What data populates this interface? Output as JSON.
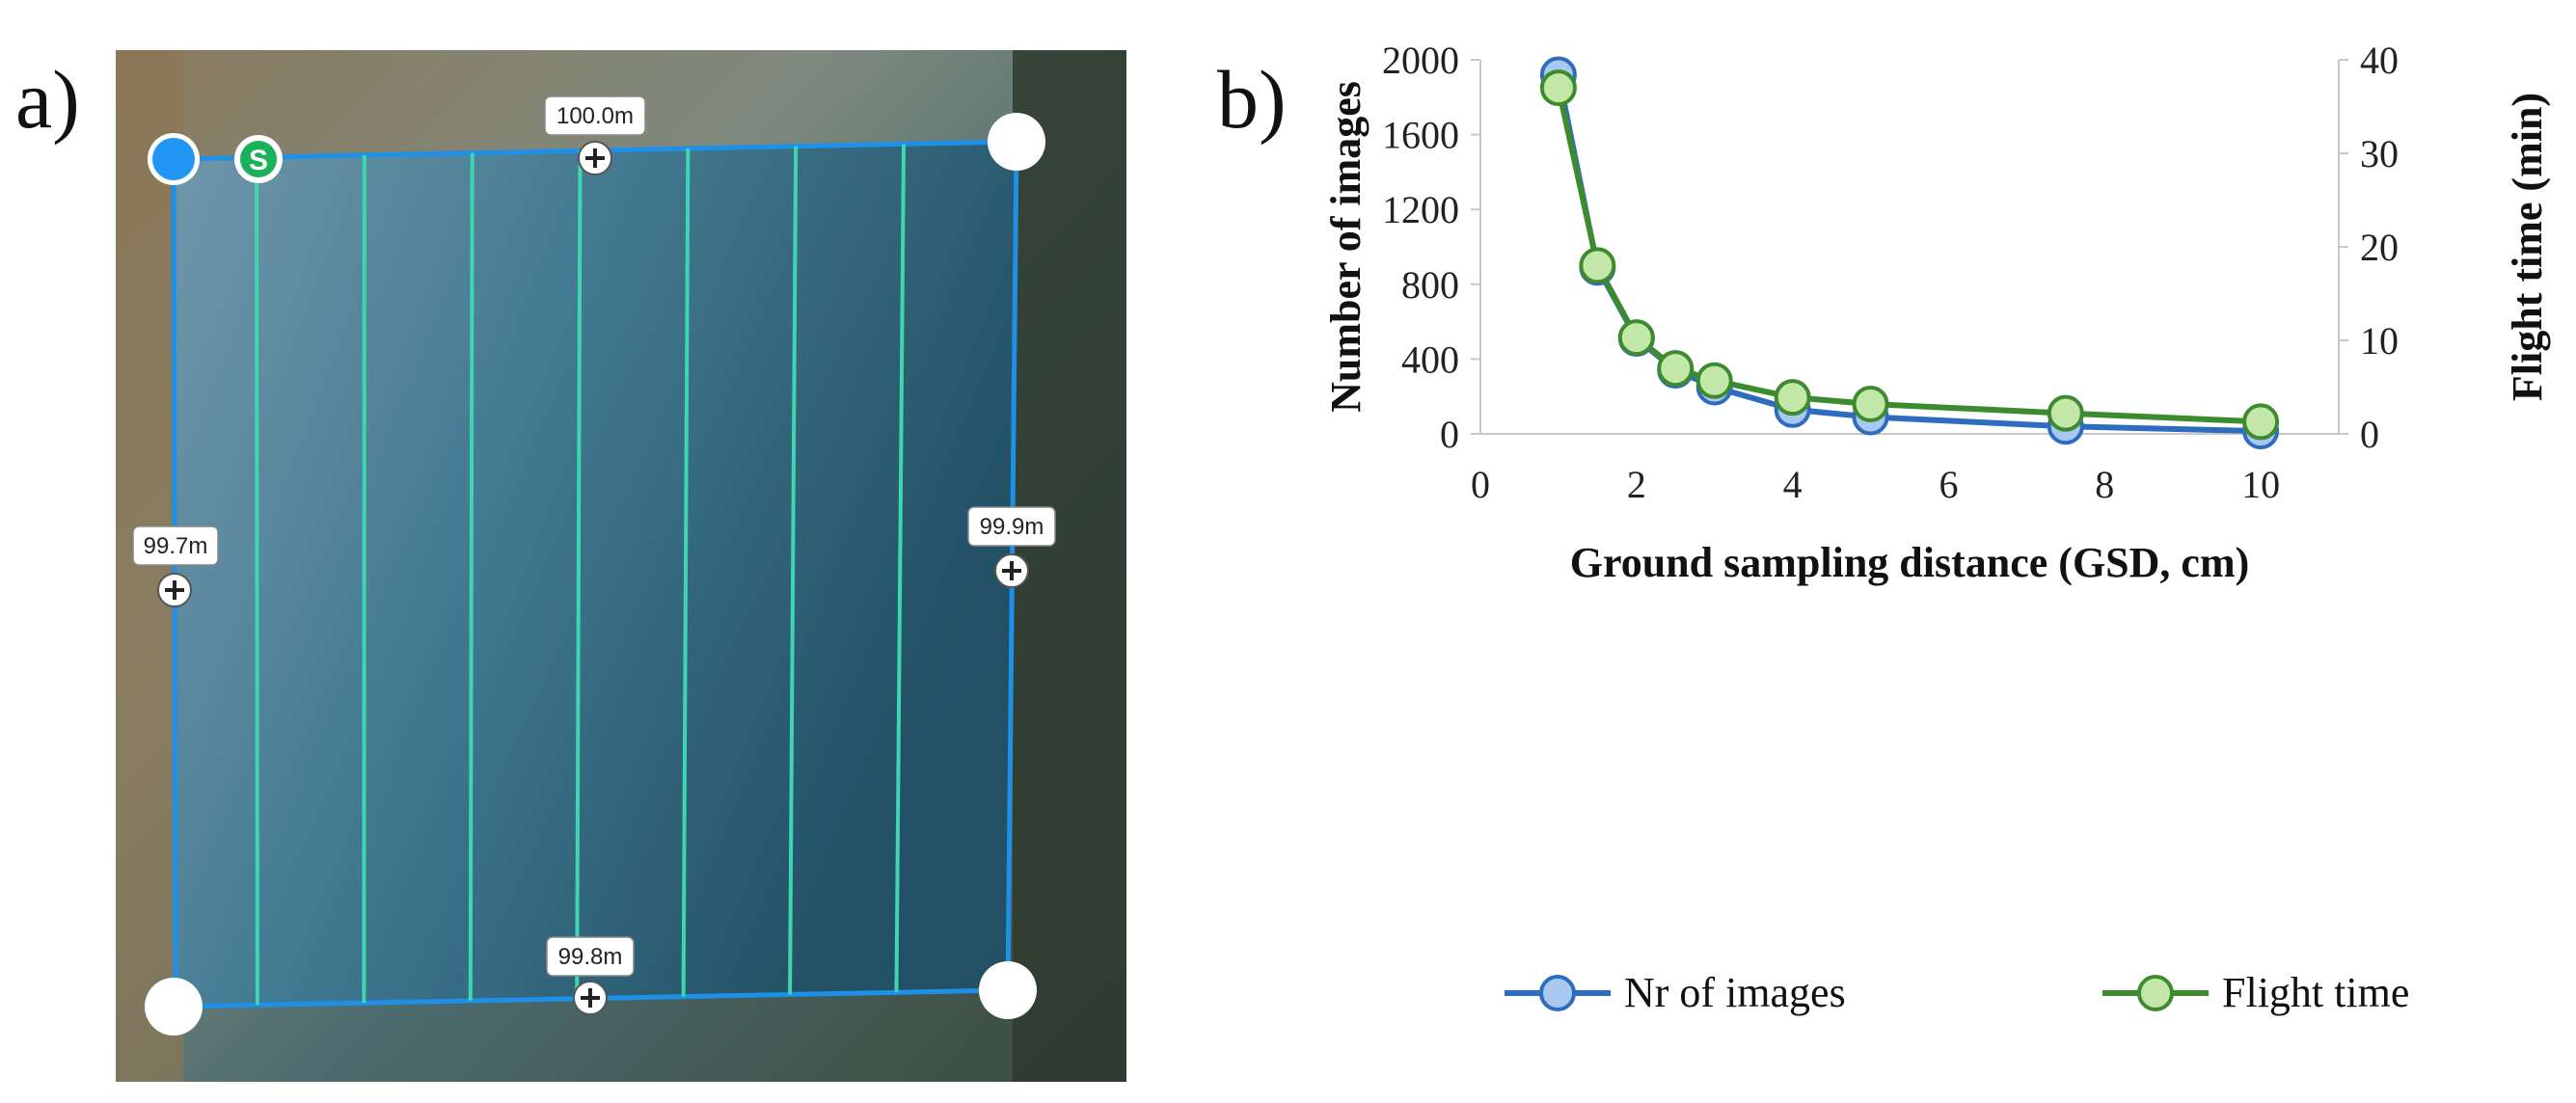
{
  "panel_a": {
    "label": "a)",
    "start_marker": "S",
    "distances": {
      "top": "100.0m",
      "left": "99.7m",
      "right": "99.9m",
      "bottom": "99.8m"
    },
    "colors": {
      "outline": "#1e90e8",
      "fill": "#1c5f8c",
      "flight_lines": "#3dd6b0",
      "start": "#19b25a",
      "home": "#2196f3"
    }
  },
  "panel_b": {
    "label": "b)",
    "chart_data": {
      "type": "line",
      "xlabel": "Ground sampling distance (GSD, cm)",
      "ylabel_left": "Number of images",
      "ylabel_right": "Flight time (min)",
      "xlim": [
        0,
        11
      ],
      "xticks": [
        0,
        2,
        4,
        6,
        8,
        10
      ],
      "ylim_left": [
        0,
        2000
      ],
      "yticks_left": [
        0,
        400,
        800,
        1200,
        1600,
        2000
      ],
      "ylim_right": [
        0,
        40
      ],
      "yticks_right": [
        0,
        10,
        20,
        30,
        40
      ],
      "legend_position": "bottom",
      "x": [
        1,
        1.5,
        2,
        2.5,
        3,
        4,
        5,
        7.5,
        10
      ],
      "series": [
        {
          "name": "Nr of images",
          "axis": "left",
          "color": "#2e6cc0",
          "marker_fill": "#a9c8ef",
          "values": [
            1920,
            890,
            510,
            340,
            250,
            130,
            90,
            40,
            15
          ]
        },
        {
          "name": "Flight time",
          "axis": "right",
          "color": "#3e8b2f",
          "marker_fill": "#c3e7a8",
          "values": [
            37,
            18,
            10.3,
            7,
            5.7,
            3.9,
            3.2,
            2.2,
            1.3
          ]
        }
      ]
    }
  }
}
